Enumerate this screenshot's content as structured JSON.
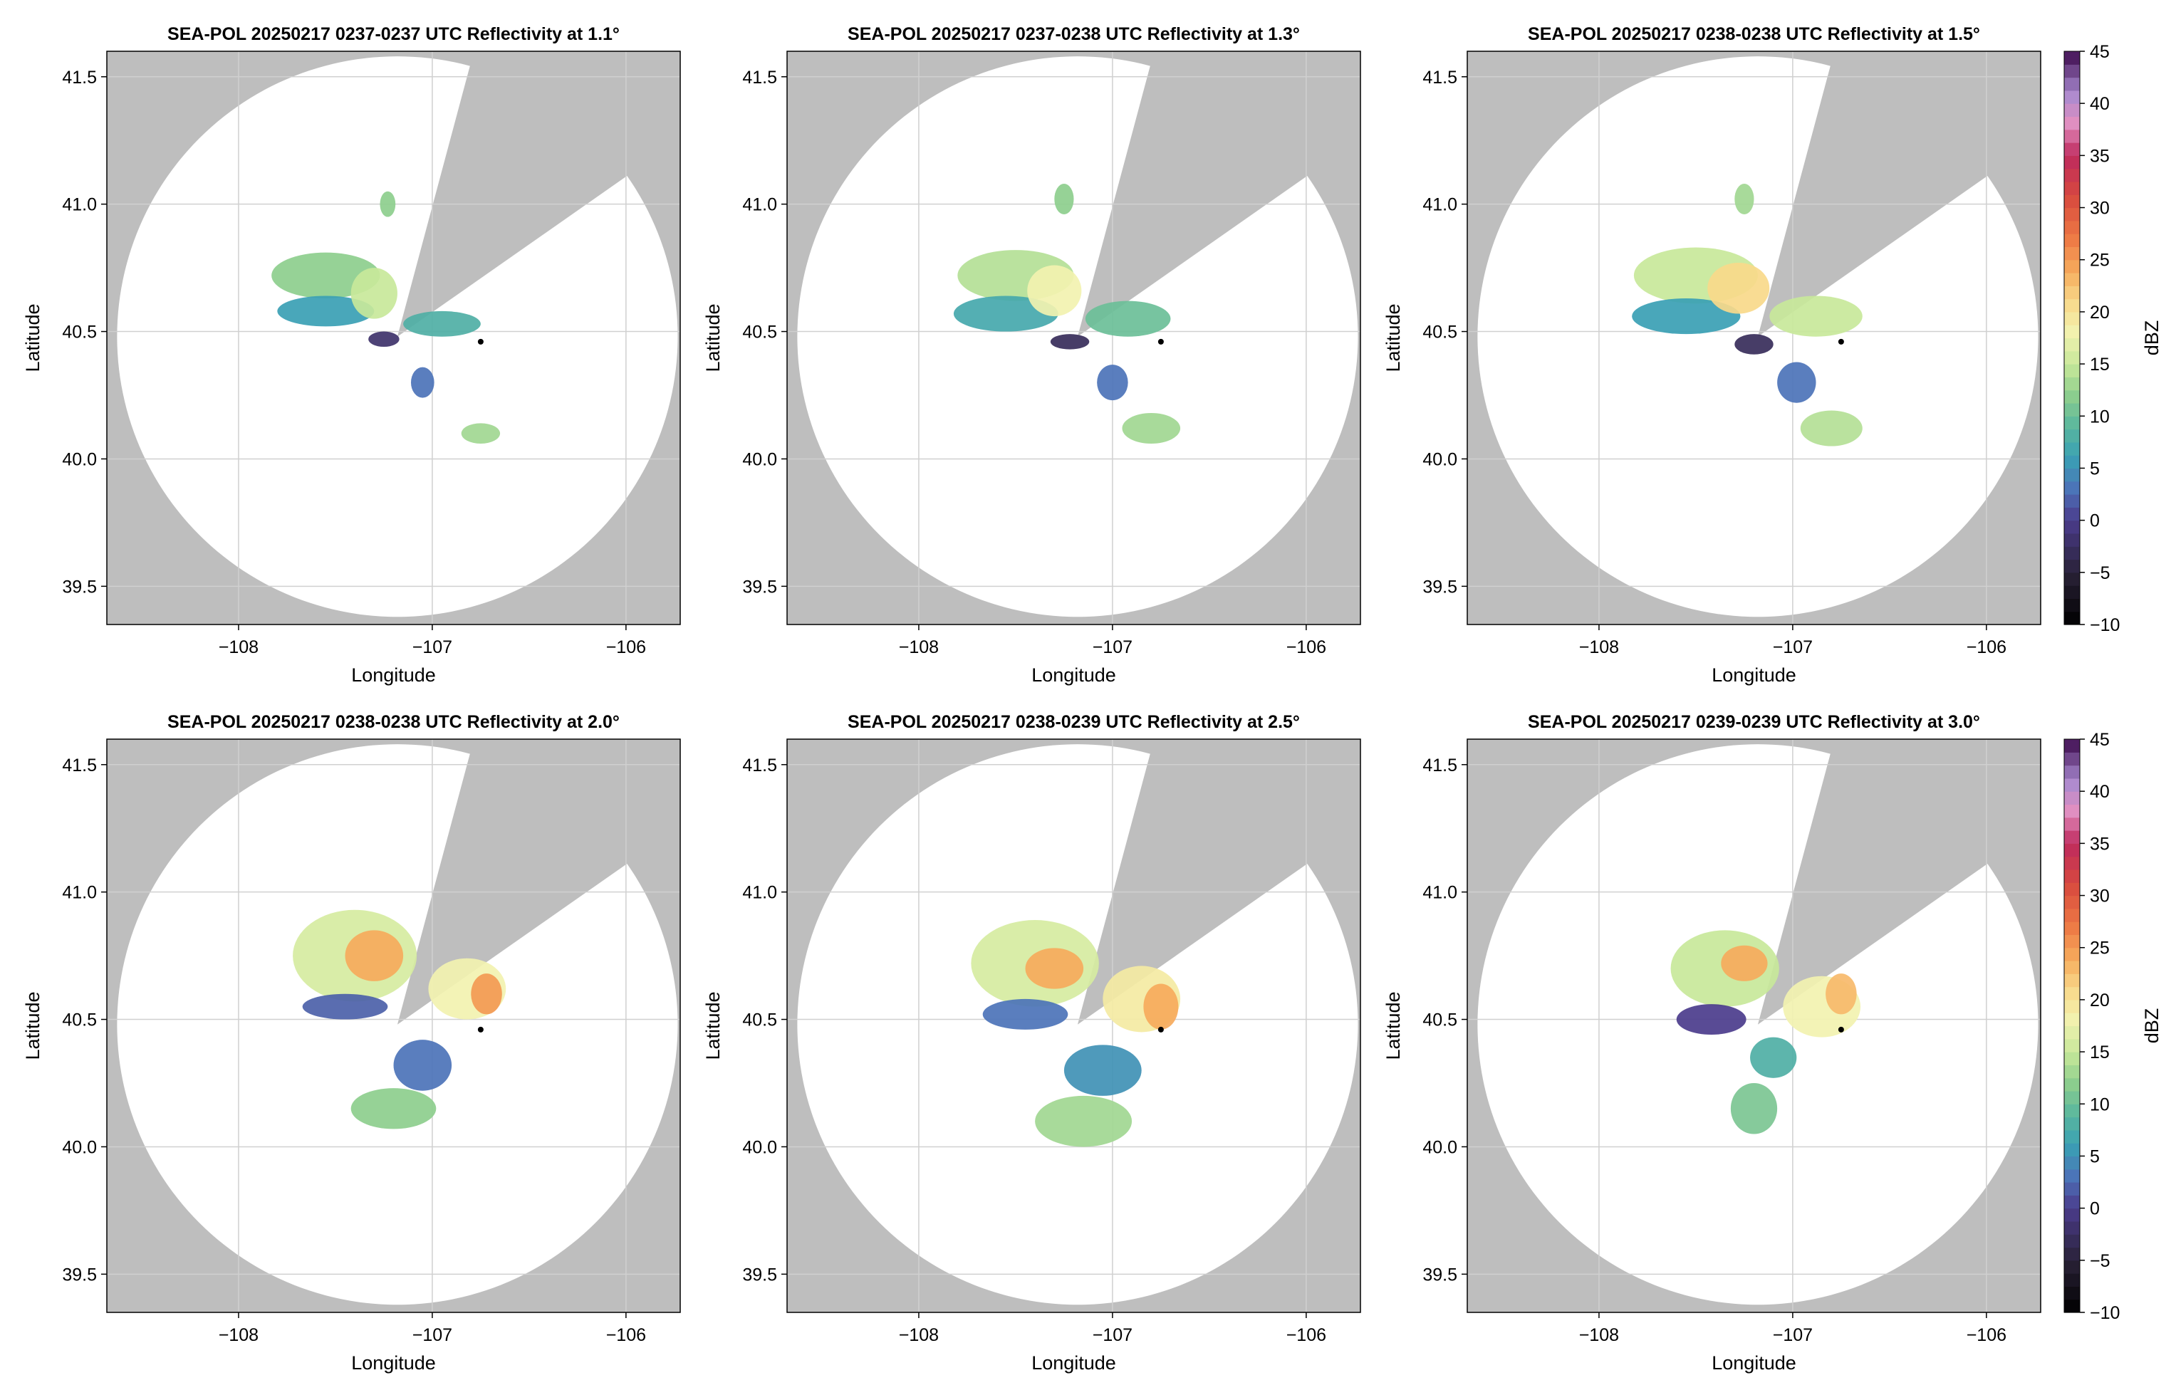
{
  "chart_data": [
    {
      "type": "heatmap",
      "title": "SEA-POL 20250217 0237-0237 UTC Reflectivity at 1.1°",
      "xlabel": "Longitude",
      "ylabel": "Latitude",
      "xlim": [
        -108.68,
        -105.72
      ],
      "ylim": [
        39.35,
        41.6
      ],
      "xticks": [
        -108,
        -107,
        -106
      ],
      "yticks": [
        39.5,
        40.0,
        40.5,
        41.0,
        41.5
      ],
      "xtick_labels": [
        "−108",
        "−107",
        "−106"
      ],
      "ytick_labels": [
        "39.5",
        "40.0",
        "40.5",
        "41.0",
        "41.5"
      ],
      "grid": true,
      "radar_site": {
        "lon": -107.18,
        "lat": 40.48
      },
      "marker": {
        "lon": -106.75,
        "lat": 40.46
      },
      "range_max_deg_lat": 1.1,
      "blocked_sector_deg": [
        15,
        55
      ],
      "echoes": [
        {
          "lon": -107.55,
          "lat": 40.72,
          "rlon": 0.28,
          "rlat": 0.09,
          "dbz": 12
        },
        {
          "lon": -107.55,
          "lat": 40.58,
          "rlon": 0.25,
          "rlat": 0.06,
          "dbz": 6
        },
        {
          "lon": -107.3,
          "lat": 40.65,
          "rlon": 0.12,
          "rlat": 0.1,
          "dbz": 15
        },
        {
          "lon": -106.95,
          "lat": 40.53,
          "rlon": 0.2,
          "rlat": 0.05,
          "dbz": 8
        },
        {
          "lon": -107.25,
          "lat": 40.47,
          "rlon": 0.08,
          "rlat": 0.03,
          "dbz": -2
        },
        {
          "lon": -107.05,
          "lat": 40.3,
          "rlon": 0.06,
          "rlat": 0.06,
          "dbz": 3
        },
        {
          "lon": -106.75,
          "lat": 40.1,
          "rlon": 0.1,
          "rlat": 0.04,
          "dbz": 13
        },
        {
          "lon": -107.23,
          "lat": 41.0,
          "rlon": 0.04,
          "rlat": 0.05,
          "dbz": 12
        }
      ]
    },
    {
      "type": "heatmap",
      "title": "SEA-POL 20250217 0237-0238 UTC Reflectivity at 1.3°",
      "xlabel": "Longitude",
      "ylabel": "Latitude",
      "xlim": [
        -108.68,
        -105.72
      ],
      "ylim": [
        39.35,
        41.6
      ],
      "xticks": [
        -108,
        -107,
        -106
      ],
      "yticks": [
        39.5,
        40.0,
        40.5,
        41.0,
        41.5
      ],
      "xtick_labels": [
        "−108",
        "−107",
        "−106"
      ],
      "ytick_labels": [
        "39.5",
        "40.0",
        "40.5",
        "41.0",
        "41.5"
      ],
      "grid": true,
      "radar_site": {
        "lon": -107.18,
        "lat": 40.48
      },
      "marker": {
        "lon": -106.75,
        "lat": 40.46
      },
      "range_max_deg_lat": 1.1,
      "blocked_sector_deg": [
        15,
        55
      ],
      "echoes": [
        {
          "lon": -107.5,
          "lat": 40.72,
          "rlon": 0.3,
          "rlat": 0.1,
          "dbz": 14
        },
        {
          "lon": -107.55,
          "lat": 40.57,
          "rlon": 0.27,
          "rlat": 0.07,
          "dbz": 7
        },
        {
          "lon": -107.3,
          "lat": 40.66,
          "rlon": 0.14,
          "rlat": 0.1,
          "dbz": 18
        },
        {
          "lon": -106.92,
          "lat": 40.55,
          "rlon": 0.22,
          "rlat": 0.07,
          "dbz": 10
        },
        {
          "lon": -107.22,
          "lat": 40.46,
          "rlon": 0.1,
          "rlat": 0.03,
          "dbz": -3
        },
        {
          "lon": -107.0,
          "lat": 40.3,
          "rlon": 0.08,
          "rlat": 0.07,
          "dbz": 3
        },
        {
          "lon": -106.8,
          "lat": 40.12,
          "rlon": 0.15,
          "rlat": 0.06,
          "dbz": 13
        },
        {
          "lon": -107.25,
          "lat": 41.02,
          "rlon": 0.05,
          "rlat": 0.06,
          "dbz": 12
        }
      ]
    },
    {
      "type": "heatmap",
      "title": "SEA-POL 20250217 0238-0238 UTC Reflectivity at 1.5°",
      "xlabel": "Longitude",
      "ylabel": "Latitude",
      "xlim": [
        -108.68,
        -105.72
      ],
      "ylim": [
        39.35,
        41.6
      ],
      "xticks": [
        -108,
        -107,
        -106
      ],
      "yticks": [
        39.5,
        40.0,
        40.5,
        41.0,
        41.5
      ],
      "xtick_labels": [
        "−108",
        "−107",
        "−106"
      ],
      "ytick_labels": [
        "39.5",
        "40.0",
        "40.5",
        "41.0",
        "41.5"
      ],
      "grid": true,
      "radar_site": {
        "lon": -107.18,
        "lat": 40.48
      },
      "marker": {
        "lon": -106.75,
        "lat": 40.46
      },
      "range_max_deg_lat": 1.1,
      "blocked_sector_deg": [
        15,
        55
      ],
      "echoes": [
        {
          "lon": -107.5,
          "lat": 40.72,
          "rlon": 0.32,
          "rlat": 0.11,
          "dbz": 15
        },
        {
          "lon": -107.55,
          "lat": 40.56,
          "rlon": 0.28,
          "rlat": 0.07,
          "dbz": 6
        },
        {
          "lon": -107.28,
          "lat": 40.67,
          "rlon": 0.16,
          "rlat": 0.1,
          "dbz": 21
        },
        {
          "lon": -106.88,
          "lat": 40.56,
          "rlon": 0.24,
          "rlat": 0.08,
          "dbz": 15
        },
        {
          "lon": -107.2,
          "lat": 40.45,
          "rlon": 0.1,
          "rlat": 0.04,
          "dbz": -3
        },
        {
          "lon": -106.98,
          "lat": 40.3,
          "rlon": 0.1,
          "rlat": 0.08,
          "dbz": 3
        },
        {
          "lon": -106.8,
          "lat": 40.12,
          "rlon": 0.16,
          "rlat": 0.07,
          "dbz": 14
        },
        {
          "lon": -107.25,
          "lat": 41.02,
          "rlon": 0.05,
          "rlat": 0.06,
          "dbz": 13
        }
      ]
    },
    {
      "type": "heatmap",
      "title": "SEA-POL 20250217 0238-0238 UTC Reflectivity at 2.0°",
      "xlabel": "Longitude",
      "ylabel": "Latitude",
      "xlim": [
        -108.68,
        -105.72
      ],
      "ylim": [
        39.35,
        41.6
      ],
      "xticks": [
        -108,
        -107,
        -106
      ],
      "yticks": [
        39.5,
        40.0,
        40.5,
        41.0,
        41.5
      ],
      "xtick_labels": [
        "−108",
        "−107",
        "−106"
      ],
      "ytick_labels": [
        "39.5",
        "40.0",
        "40.5",
        "41.0",
        "41.5"
      ],
      "grid": true,
      "radar_site": {
        "lon": -107.18,
        "lat": 40.48
      },
      "marker": {
        "lon": -106.75,
        "lat": 40.46
      },
      "range_max_deg_lat": 1.1,
      "blocked_sector_deg": [
        15,
        55
      ],
      "echoes": [
        {
          "lon": -107.4,
          "lat": 40.75,
          "rlon": 0.32,
          "rlat": 0.18,
          "dbz": 16
        },
        {
          "lon": -107.3,
          "lat": 40.75,
          "rlon": 0.15,
          "rlat": 0.1,
          "dbz": 24
        },
        {
          "lon": -107.45,
          "lat": 40.55,
          "rlon": 0.22,
          "rlat": 0.05,
          "dbz": 2
        },
        {
          "lon": -106.82,
          "lat": 40.62,
          "rlon": 0.2,
          "rlat": 0.12,
          "dbz": 18
        },
        {
          "lon": -106.72,
          "lat": 40.6,
          "rlon": 0.08,
          "rlat": 0.08,
          "dbz": 25
        },
        {
          "lon": -107.05,
          "lat": 40.32,
          "rlon": 0.15,
          "rlat": 0.1,
          "dbz": 3
        },
        {
          "lon": -107.2,
          "lat": 40.15,
          "rlon": 0.22,
          "rlat": 0.08,
          "dbz": 12
        }
      ]
    },
    {
      "type": "heatmap",
      "title": "SEA-POL 20250217 0238-0239 UTC Reflectivity at 2.5°",
      "xlabel": "Longitude",
      "ylabel": "Latitude",
      "xlim": [
        -108.68,
        -105.72
      ],
      "ylim": [
        39.35,
        41.6
      ],
      "xticks": [
        -108,
        -107,
        -106
      ],
      "yticks": [
        39.5,
        40.0,
        40.5,
        41.0,
        41.5
      ],
      "xtick_labels": [
        "−108",
        "−107",
        "−106"
      ],
      "ytick_labels": [
        "39.5",
        "40.0",
        "40.5",
        "41.0",
        "41.5"
      ],
      "grid": true,
      "radar_site": {
        "lon": -107.18,
        "lat": 40.48
      },
      "marker": {
        "lon": -106.75,
        "lat": 40.46
      },
      "range_max_deg_lat": 1.1,
      "blocked_sector_deg": [
        15,
        55
      ],
      "echoes": [
        {
          "lon": -107.4,
          "lat": 40.72,
          "rlon": 0.33,
          "rlat": 0.17,
          "dbz": 16
        },
        {
          "lon": -107.3,
          "lat": 40.7,
          "rlon": 0.15,
          "rlat": 0.08,
          "dbz": 24
        },
        {
          "lon": -107.45,
          "lat": 40.52,
          "rlon": 0.22,
          "rlat": 0.06,
          "dbz": 3
        },
        {
          "lon": -106.85,
          "lat": 40.58,
          "rlon": 0.2,
          "rlat": 0.13,
          "dbz": 19
        },
        {
          "lon": -106.75,
          "lat": 40.55,
          "rlon": 0.09,
          "rlat": 0.09,
          "dbz": 24
        },
        {
          "lon": -107.05,
          "lat": 40.3,
          "rlon": 0.2,
          "rlat": 0.1,
          "dbz": 5
        },
        {
          "lon": -107.15,
          "lat": 40.1,
          "rlon": 0.25,
          "rlat": 0.1,
          "dbz": 13
        }
      ]
    },
    {
      "type": "heatmap",
      "title": "SEA-POL 20250217 0239-0239 UTC Reflectivity at 3.0°",
      "xlabel": "Longitude",
      "ylabel": "Latitude",
      "xlim": [
        -108.68,
        -105.72
      ],
      "ylim": [
        39.35,
        41.6
      ],
      "xticks": [
        -108,
        -107,
        -106
      ],
      "yticks": [
        39.5,
        40.0,
        40.5,
        41.0,
        41.5
      ],
      "xtick_labels": [
        "−108",
        "−107",
        "−106"
      ],
      "ytick_labels": [
        "39.5",
        "40.0",
        "40.5",
        "41.0",
        "41.5"
      ],
      "grid": true,
      "radar_site": {
        "lon": -107.18,
        "lat": 40.48
      },
      "marker": {
        "lon": -106.75,
        "lat": 40.46
      },
      "range_max_deg_lat": 1.1,
      "blocked_sector_deg": [
        15,
        55
      ],
      "echoes": [
        {
          "lon": -107.35,
          "lat": 40.7,
          "rlon": 0.28,
          "rlat": 0.15,
          "dbz": 15
        },
        {
          "lon": -107.25,
          "lat": 40.72,
          "rlon": 0.12,
          "rlat": 0.07,
          "dbz": 24
        },
        {
          "lon": -107.42,
          "lat": 40.5,
          "rlon": 0.18,
          "rlat": 0.06,
          "dbz": 0
        },
        {
          "lon": -106.85,
          "lat": 40.55,
          "rlon": 0.2,
          "rlat": 0.12,
          "dbz": 18
        },
        {
          "lon": -106.75,
          "lat": 40.6,
          "rlon": 0.08,
          "rlat": 0.08,
          "dbz": 23
        },
        {
          "lon": -107.1,
          "lat": 40.35,
          "rlon": 0.12,
          "rlat": 0.08,
          "dbz": 8
        },
        {
          "lon": -107.2,
          "lat": 40.15,
          "rlon": 0.12,
          "rlat": 0.1,
          "dbz": 11
        }
      ]
    }
  ],
  "colorbar": {
    "label": "dBZ",
    "min": -10,
    "max": 45,
    "ticks": [
      -10,
      -5,
      0,
      5,
      10,
      15,
      20,
      25,
      30,
      35,
      40,
      45
    ],
    "tick_labels": [
      "−10",
      "−5",
      "0",
      "5",
      "10",
      "15",
      "20",
      "25",
      "30",
      "35",
      "40",
      "45"
    ],
    "stops": [
      {
        "v": -10,
        "c": "#000000"
      },
      {
        "v": -5,
        "c": "#2a2238"
      },
      {
        "v": 0,
        "c": "#4b3c8c"
      },
      {
        "v": 3,
        "c": "#4c73b8"
      },
      {
        "v": 6,
        "c": "#3aa0b4"
      },
      {
        "v": 9,
        "c": "#5ab79e"
      },
      {
        "v": 12,
        "c": "#8dce8d"
      },
      {
        "v": 15,
        "c": "#c8e89a"
      },
      {
        "v": 18,
        "c": "#f2f2b0"
      },
      {
        "v": 21,
        "c": "#f9d98a"
      },
      {
        "v": 24,
        "c": "#f6aa5c"
      },
      {
        "v": 27,
        "c": "#ee7a45"
      },
      {
        "v": 31,
        "c": "#d84a3e"
      },
      {
        "v": 35,
        "c": "#be2a5e"
      },
      {
        "v": 38,
        "c": "#e28fc0"
      },
      {
        "v": 41,
        "c": "#a98ad0"
      },
      {
        "v": 45,
        "c": "#3d0a4e"
      }
    ]
  },
  "colors": {
    "missing": "#bebebe",
    "background": "#ffffff"
  }
}
